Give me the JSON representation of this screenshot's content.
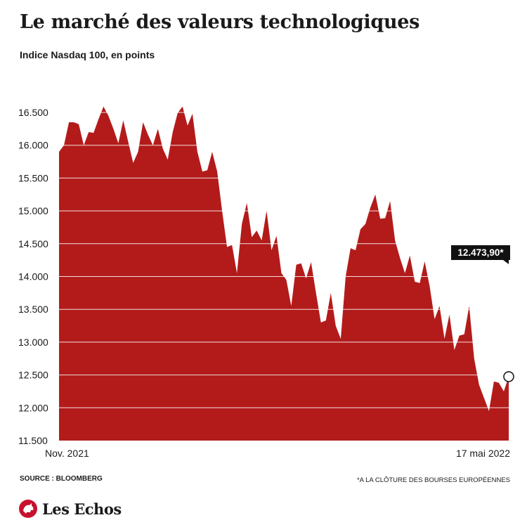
{
  "header": {
    "title": "Le marché des valeurs technologiques",
    "subtitle": "Indice Nasdaq 100, en points"
  },
  "footer": {
    "source": "SOURCE : BLOOMBERG",
    "note": "*A LA CLÔTURE DES BOURSES EUROPÉENNES"
  },
  "brand": {
    "logo_text": "Les Echos",
    "logo_icon": "les-echos-rooster-logo"
  },
  "colors": {
    "area": "#b31b1b",
    "marker_stroke": "#1a1a1a",
    "callout_bg": "#111111",
    "text": "#1a1a1a"
  },
  "chart_data": {
    "type": "area",
    "title": "Le marché des valeurs technologiques",
    "subtitle": "Indice Nasdaq 100, en points",
    "xlabel": "",
    "ylabel": "",
    "x_start_label": "Nov. 2021",
    "x_end_label": "17 mai 2022",
    "ylim": [
      11500,
      16500
    ],
    "yticks": [
      11500,
      12000,
      12500,
      13000,
      13500,
      14000,
      14500,
      15000,
      15500,
      16000,
      16500
    ],
    "ytick_labels": [
      "11.500",
      "12.000",
      "12.500",
      "13.000",
      "13.500",
      "14.000",
      "14.500",
      "15.000",
      "15.500",
      "16.000",
      "16.500"
    ],
    "grid": true,
    "last_value": 12473.9,
    "last_value_label": "12.473,90*",
    "values": [
      15900,
      16000,
      16350,
      16350,
      16320,
      16000,
      16200,
      16190,
      16400,
      16590,
      16450,
      16250,
      16030,
      16380,
      16050,
      15730,
      15900,
      16350,
      16160,
      16000,
      16250,
      15950,
      15780,
      16200,
      16490,
      16590,
      16300,
      16480,
      15900,
      15600,
      15620,
      15900,
      15600,
      15000,
      14450,
      14480,
      14050,
      14800,
      15120,
      14600,
      14700,
      14550,
      15000,
      14400,
      14620,
      14050,
      13950,
      13550,
      14180,
      14200,
      13970,
      14220,
      13750,
      13300,
      13330,
      13750,
      13250,
      13050,
      14000,
      14430,
      14400,
      14720,
      14800,
      15050,
      15250,
      14880,
      14890,
      15150,
      14550,
      14280,
      14050,
      14320,
      13920,
      13900,
      14230,
      13850,
      13350,
      13550,
      13050,
      13420,
      12880,
      13100,
      13120,
      13550,
      12750,
      12350,
      12150,
      11950,
      12400,
      12380,
      12250,
      12473.9
    ]
  }
}
